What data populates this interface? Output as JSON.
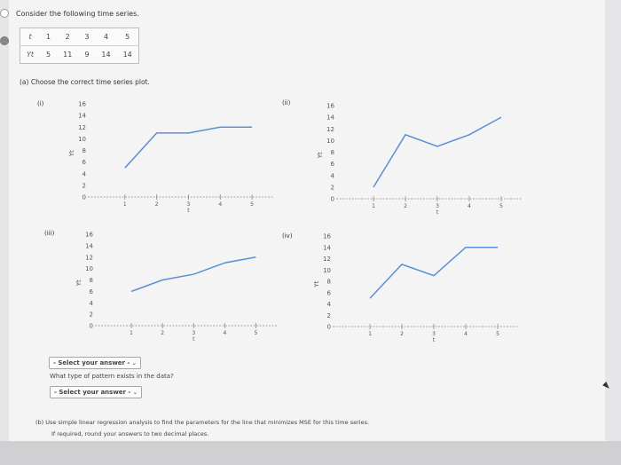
{
  "prompt": "Consider the following time series.",
  "table": {
    "t_header": "t",
    "y_header": "Yt",
    "t": [
      "1",
      "2",
      "3",
      "4",
      "5"
    ],
    "y": [
      "5",
      "11",
      "9",
      "14",
      "14"
    ]
  },
  "part_a": "(a) Choose the correct time series plot.",
  "plots": [
    {
      "label": "(i)",
      "ylabel": "Yt",
      "xlabel": "t",
      "yticks": [
        "16",
        "14",
        "12",
        "10",
        "8",
        "6",
        "4",
        "2",
        "0"
      ],
      "xticks": [
        "1",
        "2",
        "3",
        "4",
        "5"
      ],
      "chart_data": {
        "type": "line",
        "x": [
          1,
          2,
          3,
          4,
          5
        ],
        "y": [
          5,
          11,
          11,
          12,
          12
        ],
        "ylim": [
          0,
          16
        ],
        "xlim": [
          0,
          5.5
        ]
      }
    },
    {
      "label": "(ii)",
      "ylabel": "Yt",
      "xlabel": "t",
      "yticks": [
        "16",
        "14",
        "12",
        "10",
        "8",
        "6",
        "4",
        "2",
        "0"
      ],
      "xticks": [
        "1",
        "2",
        "3",
        "4",
        "5"
      ],
      "chart_data": {
        "type": "line",
        "x": [
          1,
          2,
          3,
          4,
          5
        ],
        "y": [
          2,
          11,
          9,
          11,
          14
        ],
        "ylim": [
          0,
          16
        ],
        "xlim": [
          0,
          5.5
        ]
      }
    },
    {
      "label": "(iii)",
      "ylabel": "Yt",
      "xlabel": "t",
      "yticks": [
        "16",
        "14",
        "12",
        "10",
        "8",
        "6",
        "4",
        "2",
        "0"
      ],
      "xticks": [
        "1",
        "2",
        "3",
        "4",
        "5"
      ],
      "chart_data": {
        "type": "line",
        "x": [
          1,
          2,
          3,
          4,
          5
        ],
        "y": [
          6,
          8,
          9,
          11,
          12
        ],
        "ylim": [
          0,
          16
        ],
        "xlim": [
          0,
          5.5
        ]
      }
    },
    {
      "label": "(iv)",
      "ylabel": "Yt",
      "xlabel": "t",
      "yticks": [
        "16",
        "14",
        "12",
        "10",
        "8",
        "6",
        "4",
        "2",
        "0"
      ],
      "xticks": [
        "1",
        "2",
        "3",
        "4",
        "5"
      ],
      "chart_data": {
        "type": "line",
        "x": [
          1,
          2,
          3,
          4,
          5
        ],
        "y": [
          5,
          11,
          9,
          14,
          14
        ],
        "ylim": [
          0,
          16
        ],
        "xlim": [
          0,
          5.5
        ]
      }
    }
  ],
  "select_1": "- Select your answer -",
  "question_pattern": "What type of pattern exists in the data?",
  "select_2": "- Select your answer -",
  "part_b": "(b) Use simple linear regression analysis to find the parameters for the line that minimizes MSE for this time series.",
  "part_b_note": "If required, round your answers to two decimal places.",
  "colors": {
    "line": "#5b8fd4",
    "axis": "#8a8a8a",
    "tick_text": "#555555"
  }
}
